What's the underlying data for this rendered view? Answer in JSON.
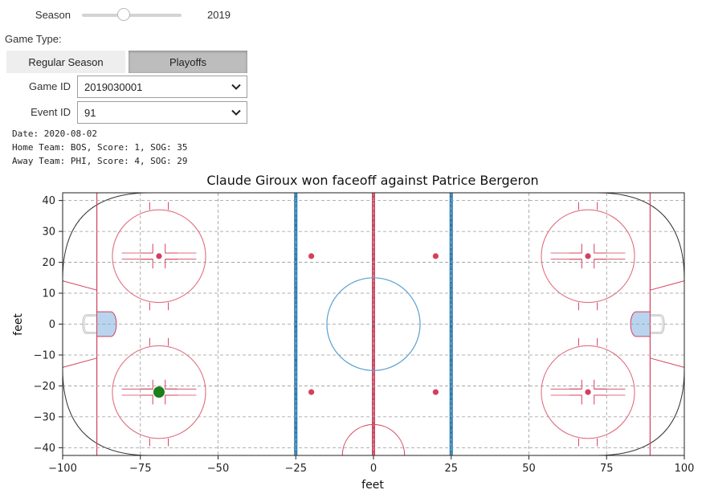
{
  "season": {
    "label": "Season",
    "value": "2019",
    "fraction": 0.42
  },
  "game_type": {
    "label": "Game Type:",
    "options": [
      "Regular Season",
      "Playoffs"
    ],
    "selected": "Playoffs"
  },
  "game_id": {
    "label": "Game ID",
    "value": "2019030001"
  },
  "event_id": {
    "label": "Event ID",
    "value": "91"
  },
  "info": {
    "date": "Date: 2020-08-02",
    "home": "Home Team: BOS, Score: 1, SOG: 35",
    "away": "Away Team: PHI, Score: 4, SOG: 29"
  },
  "colors": {
    "red": "#d4405c",
    "blue": "#1f78b4",
    "faceoff": "#1b7f1b",
    "crease": "#b9d4ee"
  },
  "chart_data": {
    "type": "scatter",
    "title": "Claude Giroux won faceoff against Patrice Bergeron",
    "xlabel": "feet",
    "ylabel": "feet",
    "xlim": [
      -100,
      100
    ],
    "ylim": [
      -42.5,
      42.5
    ],
    "xticks": [
      -100,
      -75,
      -50,
      -25,
      0,
      25,
      50,
      75,
      100
    ],
    "yticks": [
      40,
      30,
      20,
      10,
      0,
      -10,
      -20,
      -30,
      -40
    ],
    "grid": true,
    "points": [
      {
        "x": -69,
        "y": -22,
        "color": "#1b7f1b"
      }
    ]
  }
}
